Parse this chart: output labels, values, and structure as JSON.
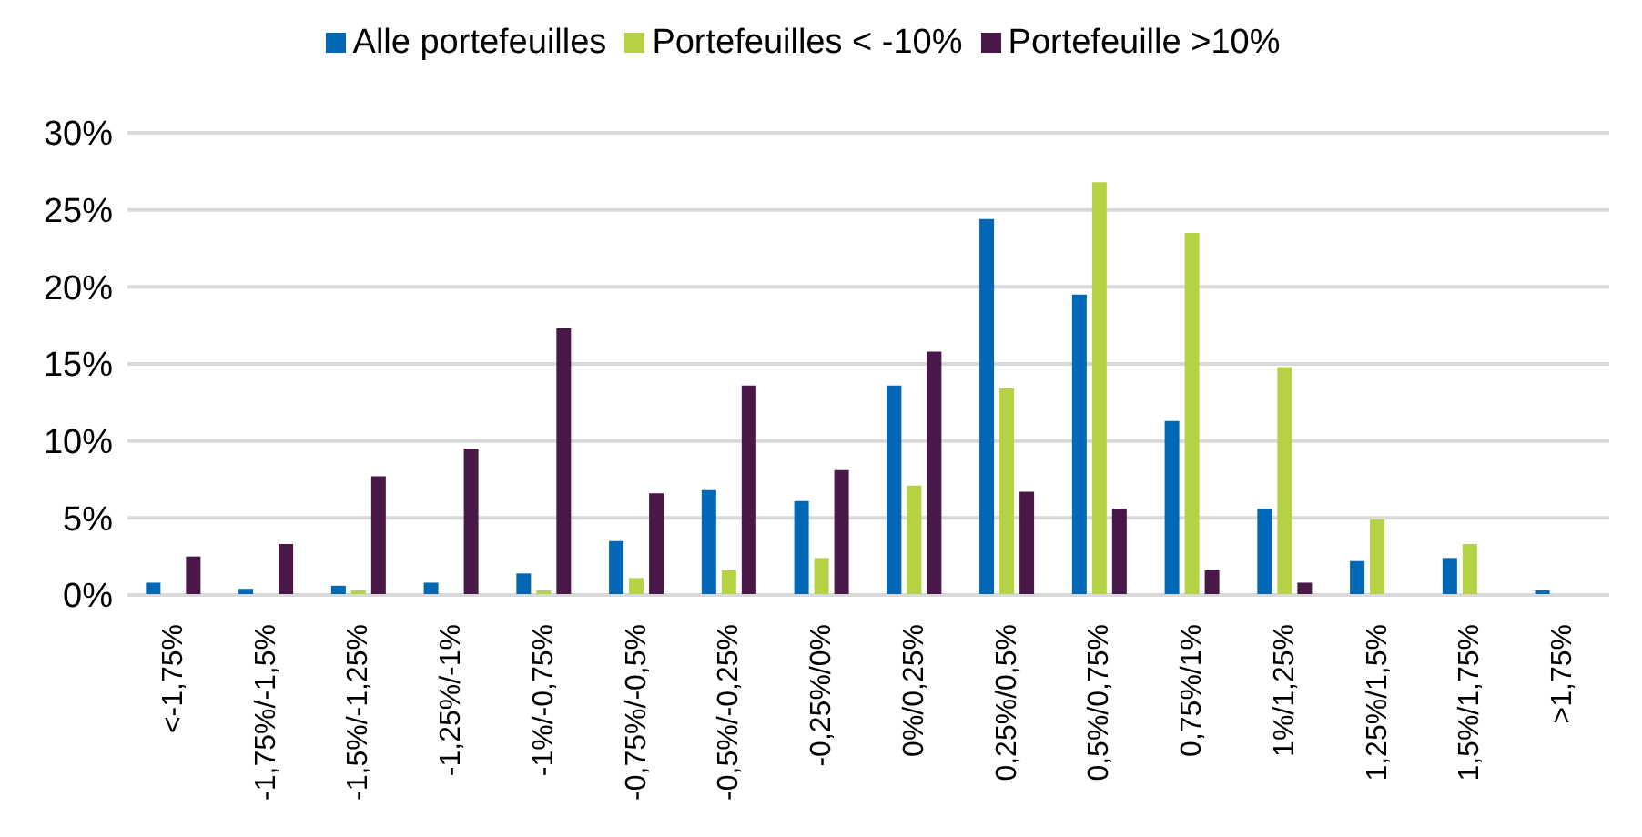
{
  "chart_data": {
    "type": "bar",
    "categories": [
      "<-1,75%",
      "-1,75%/-1,5%",
      "-1,5%/-1,25%",
      "-1,25%/-1%",
      "-1%/-0,75%",
      "-0,75%/-0,5%",
      "-0,5%/-0,25%",
      "-0,25%/0%",
      "0%/0,25%",
      "0,25%/0,5%",
      "0,5%/0,75%",
      "0,75%/1%",
      "1%/1,25%",
      "1,25%/1,5%",
      "1,5%/1,75%",
      ">1,75%"
    ],
    "series": [
      {
        "name": "Alle portefeuilles",
        "color": "#0068b4",
        "values": [
          0.8,
          0.4,
          0.6,
          0.8,
          1.4,
          3.5,
          6.8,
          6.1,
          13.6,
          24.4,
          19.5,
          11.3,
          5.6,
          2.2,
          2.4,
          0.3
        ]
      },
      {
        "name": "Portefeuilles < -10%",
        "color": "#b5d144",
        "values": [
          0,
          0,
          0.3,
          0,
          0.3,
          1.1,
          1.6,
          2.4,
          7.1,
          13.4,
          26.8,
          23.5,
          14.8,
          4.9,
          3.3,
          null
        ]
      },
      {
        "name": "Portefeuille >10%",
        "color": "#4a1848",
        "values": [
          2.5,
          3.3,
          7.7,
          9.5,
          17.3,
          6.6,
          13.6,
          8.1,
          15.8,
          6.7,
          5.6,
          1.6,
          0.8,
          0,
          null,
          0
        ]
      }
    ],
    "ylim": [
      0,
      30
    ],
    "yticks": [
      {
        "value": 0,
        "label": "0%"
      },
      {
        "value": 5,
        "label": "5%"
      },
      {
        "value": 10,
        "label": "10%"
      },
      {
        "value": 15,
        "label": "15%"
      },
      {
        "value": 20,
        "label": "20%"
      },
      {
        "value": 25,
        "label": "25%"
      },
      {
        "value": 30,
        "label": "30%"
      }
    ],
    "grid": "y",
    "legend": "top"
  }
}
